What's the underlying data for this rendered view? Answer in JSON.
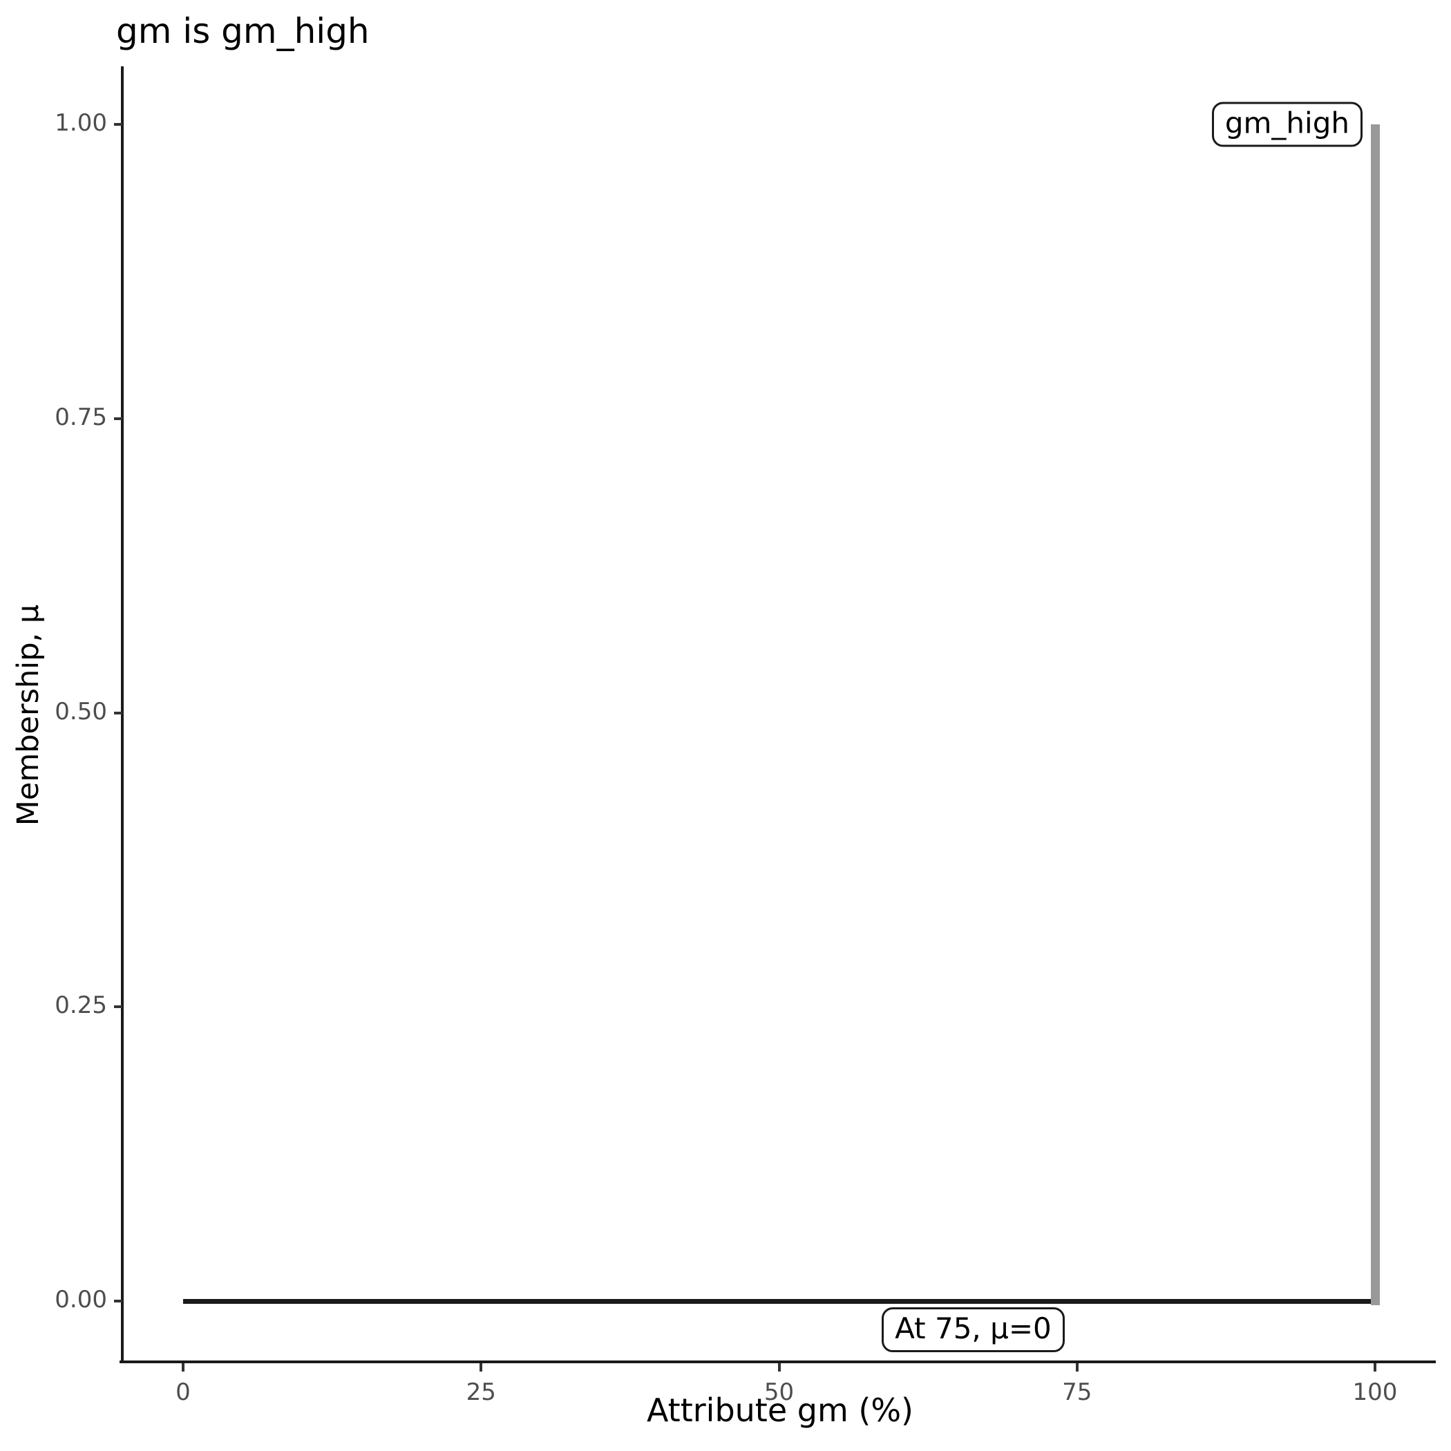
{
  "chart_data": {
    "type": "line",
    "title": "gm is gm_high",
    "xlabel": "Attribute gm (%)",
    "ylabel": "Membership, μ",
    "xlim": [
      0,
      100
    ],
    "ylim": [
      0,
      1
    ],
    "grid": false,
    "legend": "none",
    "background_color": "#ffffff",
    "axis_color": "#1a1a1a",
    "tick_color": "#333333",
    "tick_label_color": "#4d4d4d",
    "x_ticks": [
      {
        "value": 0,
        "label": "0"
      },
      {
        "value": 25,
        "label": "25"
      },
      {
        "value": 50,
        "label": "50"
      },
      {
        "value": 75,
        "label": "75"
      },
      {
        "value": 100,
        "label": "100"
      }
    ],
    "y_ticks": [
      {
        "value": 0.0,
        "label": "0.00"
      },
      {
        "value": 0.25,
        "label": "0.25"
      },
      {
        "value": 0.5,
        "label": "0.50"
      },
      {
        "value": 0.75,
        "label": "0.75"
      },
      {
        "value": 1.0,
        "label": "1.00"
      }
    ],
    "series": [
      {
        "name": "membership-function",
        "color": "#1a1a1a",
        "width": 7,
        "points": [
          [
            0,
            0
          ],
          [
            100,
            0
          ]
        ]
      },
      {
        "name": "gm-high-extent",
        "color": "#999999",
        "width": 13,
        "points": [
          [
            100,
            0
          ],
          [
            100,
            1
          ]
        ]
      }
    ],
    "annotations": [
      {
        "text": "gm_high",
        "x": 100,
        "y": 1,
        "halign": "right",
        "valign": "middle"
      },
      {
        "text": "At 75, μ=0",
        "x": 75,
        "y": 0,
        "halign": "right",
        "valign": "below"
      }
    ]
  }
}
